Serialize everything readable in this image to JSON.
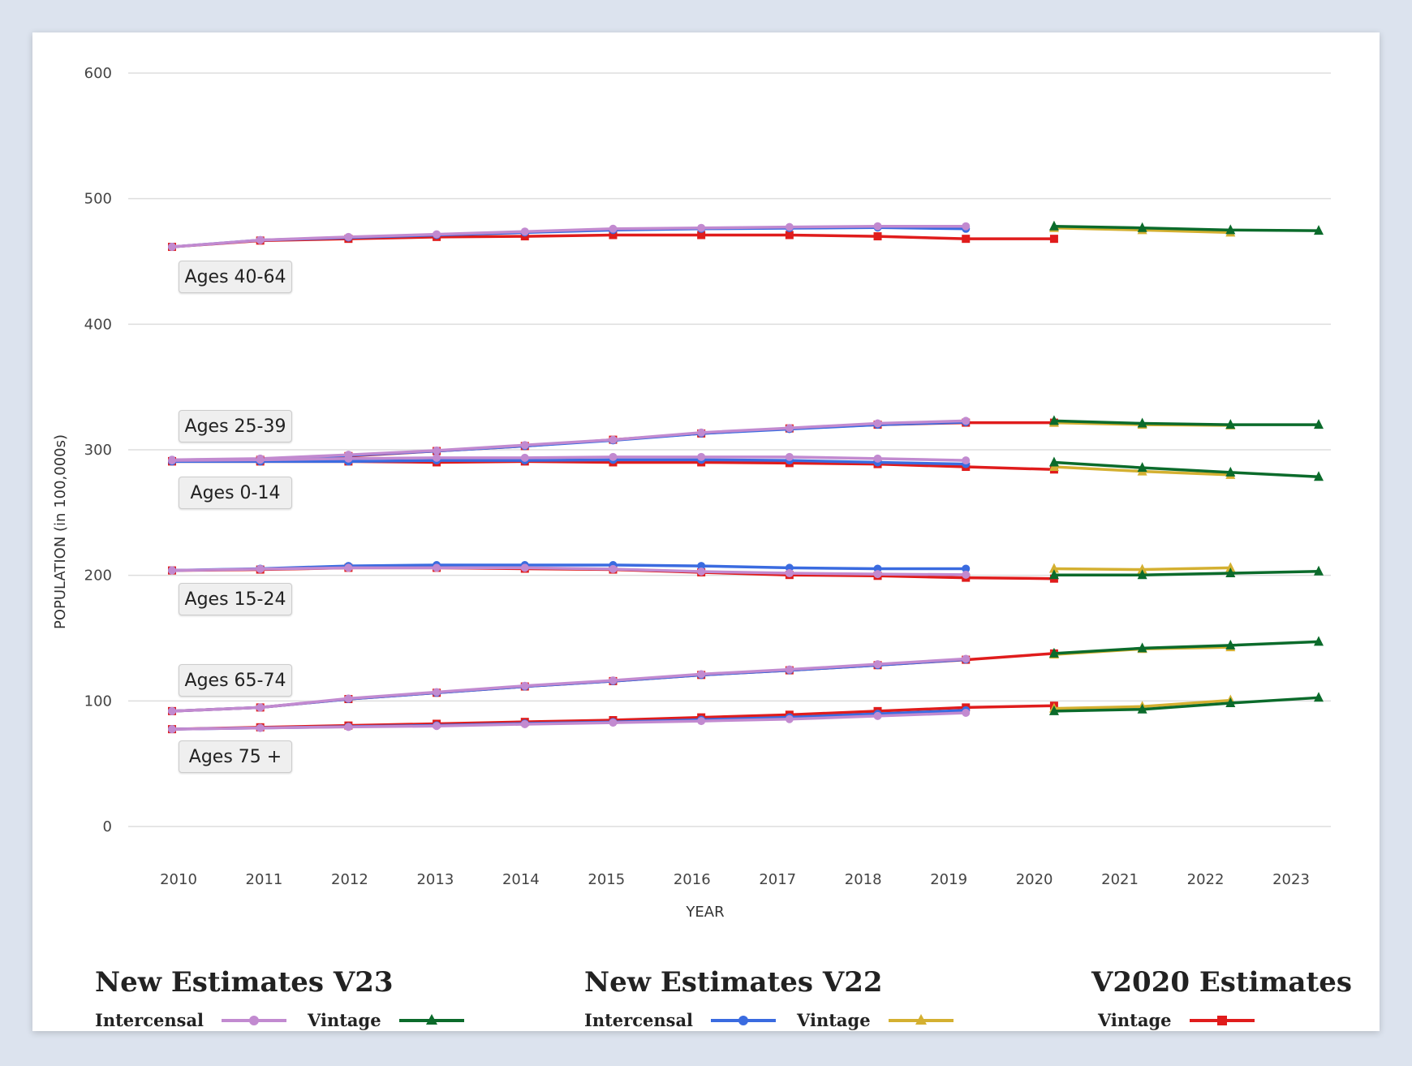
{
  "chart_data": {
    "type": "line",
    "ylabel": "POPULATION (in 100,000s)",
    "xlabel": "YEAR",
    "ylim": [
      0,
      600
    ],
    "yticks": [
      0,
      100,
      200,
      300,
      400,
      500,
      600
    ],
    "x": [
      2010,
      2011,
      2012,
      2013,
      2014,
      2015,
      2016,
      2017,
      2018,
      2019,
      2020,
      2021,
      2022,
      2023
    ],
    "grid": true,
    "legend_placement": "bottom",
    "series_styles": {
      "v23_intercensal": {
        "color": "#c28ad0",
        "marker": "circle"
      },
      "v23_vintage": {
        "color": "#0b6b2b",
        "marker": "triangle"
      },
      "v22_intercensal": {
        "color": "#3a6be0",
        "marker": "circle"
      },
      "v22_vintage": {
        "color": "#d4b031",
        "marker": "triangle"
      },
      "v2020_vintage": {
        "color": "#e01c1c",
        "marker": "square"
      }
    },
    "groups": [
      {
        "label": "Ages 40-64",
        "v2020_vintage": [
          461.6,
          466.6,
          468,
          469.5,
          470,
          471,
          471,
          471,
          470,
          468,
          468
        ],
        "v22_intercensal": [
          461.6,
          467,
          469,
          471,
          473,
          475,
          476,
          476.5,
          477,
          476
        ],
        "v23_intercensal": [
          461.6,
          467,
          469.5,
          471.6,
          473.8,
          476,
          476.7,
          477.4,
          478,
          478
        ],
        "v23_vintage": [
          478,
          476.7,
          475,
          474.5
        ],
        "v22_vintage": [
          476.7,
          475,
          473
        ]
      },
      {
        "label": "Ages 25-39",
        "v2020_vintage": [
          291,
          292,
          295,
          299,
          303,
          308,
          313,
          317,
          320,
          321.6,
          321.6
        ],
        "v22_intercensal": [
          292,
          292.5,
          295.5,
          299,
          303,
          307.5,
          313,
          316.5,
          320,
          322
        ],
        "v23_intercensal": [
          292,
          293,
          296,
          299.4,
          303.7,
          308,
          313.7,
          317.3,
          321,
          323
        ],
        "v23_vintage": [
          323,
          321,
          320,
          320
        ],
        "v22_vintage": [
          321.6,
          320,
          319.5
        ]
      },
      {
        "label": "Ages 0-14",
        "v2020_vintage": [
          290.7,
          290.7,
          290.7,
          290,
          290.7,
          290,
          290,
          289.4,
          288.6,
          286.4,
          284.3
        ],
        "v22_intercensal": [
          290.7,
          290.7,
          290.7,
          291.5,
          291.5,
          292,
          292,
          291.5,
          290,
          288.6
        ],
        "v23_intercensal": [
          291.5,
          292,
          293,
          293.6,
          293.6,
          294.3,
          294.3,
          294.3,
          293,
          291.5
        ],
        "v23_vintage": [
          290,
          285.7,
          282,
          278.5
        ],
        "v22_vintage": [
          286.4,
          282.8,
          280
        ]
      },
      {
        "label": "Ages 15-24",
        "v2020_vintage": [
          203.9,
          204.6,
          206,
          206,
          205.3,
          204.6,
          202.4,
          200.3,
          199.6,
          198.1,
          197.4
        ],
        "v22_intercensal": [
          203.9,
          205.3,
          207.5,
          208.2,
          208.2,
          208.2,
          207.5,
          206,
          205.3,
          205.3
        ],
        "v23_intercensal": [
          203.9,
          205,
          206,
          206,
          206,
          205,
          203,
          201.7,
          201,
          200.5
        ],
        "v23_vintage": [
          200.3,
          200.3,
          201.7,
          203.2
        ],
        "v22_vintage": [
          205.3,
          204.6,
          206
        ]
      },
      {
        "label": "Ages 65-74",
        "v2020_vintage": [
          91.9,
          94.8,
          101.5,
          106.5,
          111.5,
          115.8,
          120.7,
          124.4,
          128.5,
          132.8,
          137.8
        ],
        "v22_intercensal": [
          91.9,
          94.8,
          101.5,
          106.5,
          111.5,
          115.8,
          120.7,
          124.4,
          128.5,
          133
        ],
        "v23_intercensal": [
          91.9,
          94.8,
          101.9,
          107,
          112,
          116.3,
          121.3,
          125,
          129.2,
          133.5
        ],
        "v23_vintage": [
          137.8,
          142,
          144.3,
          147.2
        ],
        "v22_vintage": [
          137,
          141.4,
          142.8
        ]
      },
      {
        "label": "Ages 75 +",
        "v2020_vintage": [
          77.5,
          79,
          80.4,
          81.8,
          83.3,
          84.7,
          86.9,
          89,
          91.9,
          94.8,
          96.2
        ],
        "v22_intercensal": [
          77.5,
          78.5,
          79.5,
          80.5,
          82,
          83.2,
          85,
          87,
          89.7,
          92.5
        ],
        "v23_intercensal": [
          77.5,
          78.5,
          79.3,
          80,
          81.5,
          82.7,
          84,
          85.5,
          88,
          90.5
        ],
        "v23_vintage": [
          91.9,
          93.3,
          98.3,
          102.6
        ],
        "v22_vintage": [
          94,
          95.5,
          100.5
        ]
      }
    ]
  },
  "legend": {
    "v23": {
      "title": "New Estimates V23",
      "intercensal": "Intercensal",
      "vintage": "Vintage"
    },
    "v22": {
      "title": "New Estimates V22",
      "intercensal": "Intercensal",
      "vintage": "Vintage"
    },
    "v2020": {
      "title": "V2020 Estimates",
      "vintage": "Vintage"
    }
  }
}
